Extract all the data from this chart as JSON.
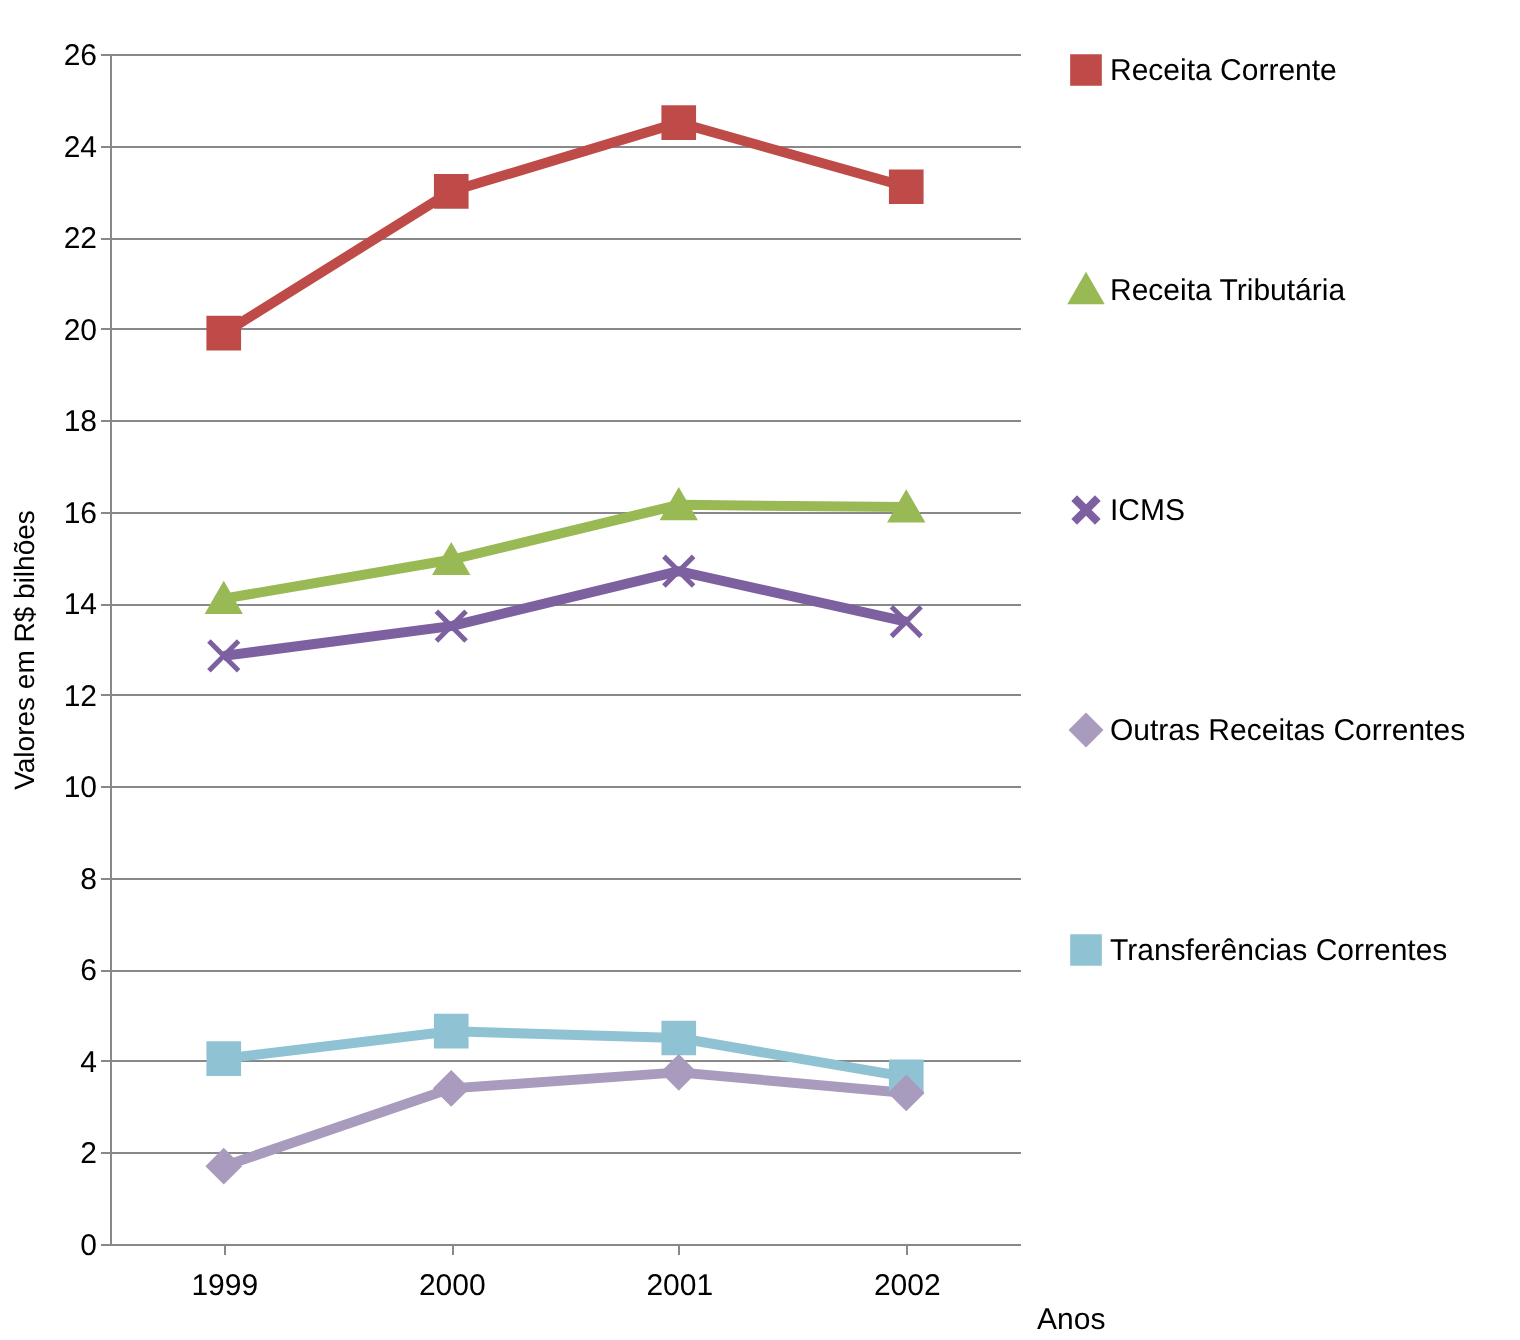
{
  "chart_data": {
    "type": "line",
    "xlabel": "Anos",
    "ylabel": "Valores em R$ bilhões",
    "categories": [
      "1999",
      "2000",
      "2001",
      "2002"
    ],
    "ylim": [
      0,
      26
    ],
    "yticks": [
      0,
      2,
      4,
      6,
      8,
      10,
      12,
      14,
      16,
      18,
      20,
      22,
      24,
      26
    ],
    "grid": "y",
    "legend": "right",
    "line_style": "solid",
    "series": [
      {
        "name": "Receita Corrente",
        "color": "#be4b48",
        "marker": "square",
        "values": [
          19.9,
          23.0,
          24.5,
          23.1
        ]
      },
      {
        "name": "Receita Tributária",
        "color": "#98b954",
        "marker": "triangle",
        "values": [
          14.1,
          14.95,
          16.15,
          16.1
        ]
      },
      {
        "name": "ICMS",
        "color": "#7d60a0",
        "marker": "cross",
        "values": [
          12.85,
          13.5,
          14.7,
          13.6
        ]
      },
      {
        "name": "Outras Receitas Correntes",
        "color": "#a99bbd",
        "marker": "diamond",
        "values": [
          1.7,
          3.4,
          3.75,
          3.3
        ]
      },
      {
        "name": "Transferências Correntes",
        "color": "#8fc3d4",
        "marker": "square",
        "values": [
          4.05,
          4.65,
          4.5,
          3.65
        ]
      }
    ]
  }
}
